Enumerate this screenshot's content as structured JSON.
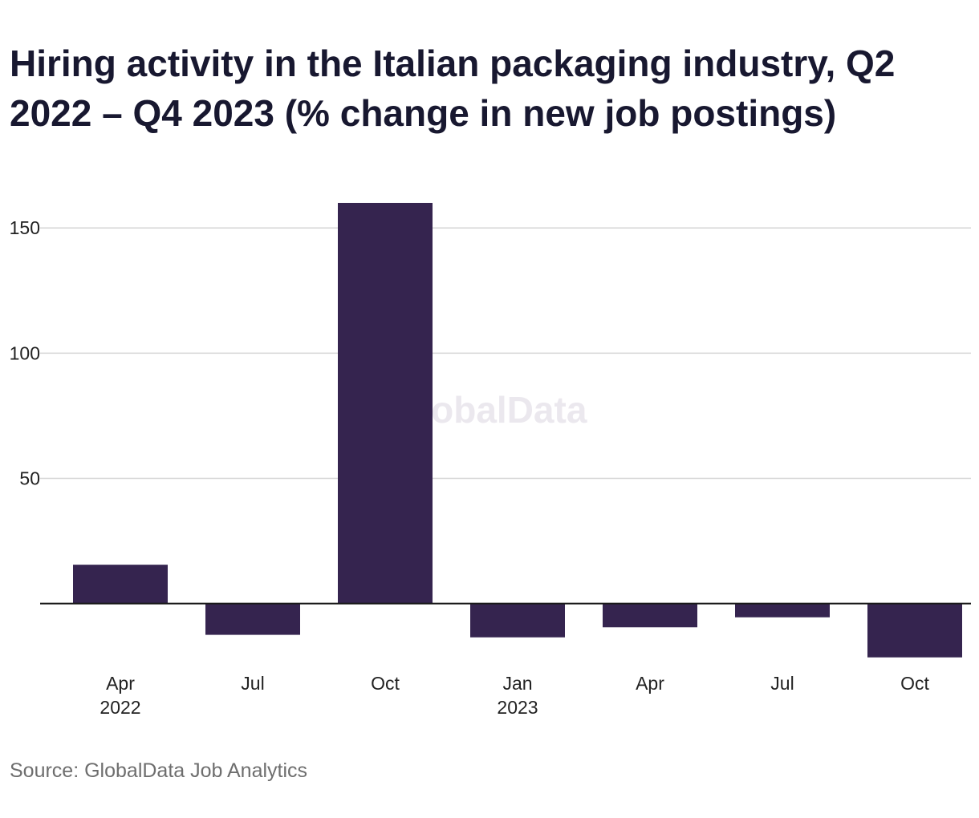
{
  "title": "Hiring activity in the Italian packaging industry, Q2 2022 – Q4 2023 (% change in new job postings)",
  "source": "Source: GlobalData Job Analytics",
  "watermark": "GlobalData",
  "chart_data": {
    "type": "bar",
    "title": "Hiring activity in the Italian packaging industry, Q2 2022 – Q4 2023 (% change in new job postings)",
    "categories": [
      {
        "label": "Apr",
        "year": "2022"
      },
      {
        "label": "Jul",
        "year": ""
      },
      {
        "label": "Oct",
        "year": ""
      },
      {
        "label": "Jan",
        "year": "2023"
      },
      {
        "label": "Apr",
        "year": ""
      },
      {
        "label": "Jul",
        "year": ""
      },
      {
        "label": "Oct",
        "year": ""
      }
    ],
    "values": [
      15.5,
      -12.5,
      160,
      -13.5,
      -9.5,
      -5.5,
      -21.5
    ],
    "yticks": [
      50,
      100,
      150
    ],
    "ylim": [
      -28,
      168
    ],
    "bar_color": "#35244f",
    "grid": true,
    "xlabel": "",
    "ylabel": ""
  }
}
